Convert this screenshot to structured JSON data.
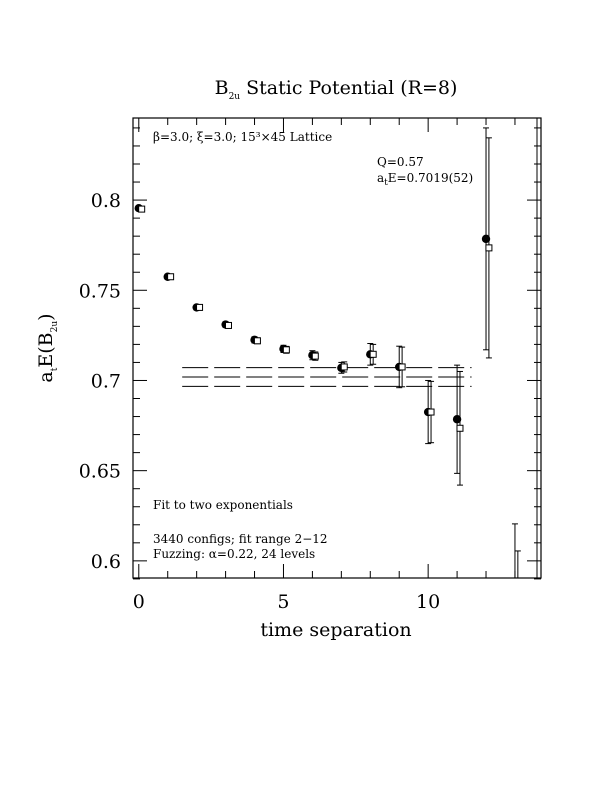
{
  "chart_data": {
    "type": "scatter",
    "title": {
      "text": "B",
      "sub": "2u",
      "rest": " Static Potential (R=8)"
    },
    "xlabel": "time separation",
    "ylabel": {
      "text": "a",
      "sub1": "t",
      "mid": "E(B",
      "sub2": "2u",
      "end": ")"
    },
    "xlim": [
      -0.2,
      13.9
    ],
    "ylim": [
      0.5905,
      0.8455
    ],
    "x_ticks": [
      {
        "v": 0,
        "label": "0"
      },
      {
        "v": 5,
        "label": "5"
      },
      {
        "v": 10,
        "label": "10"
      }
    ],
    "y_ticks": [
      {
        "v": 0.6,
        "label": "0.6"
      },
      {
        "v": 0.65,
        "label": "0.65"
      },
      {
        "v": 0.7,
        "label": "0.7"
      },
      {
        "v": 0.75,
        "label": "0.75"
      },
      {
        "v": 0.8,
        "label": "0.8"
      }
    ],
    "annotations": {
      "lattice": "β=3.0; ξ=3.0; 15³×45 Lattice",
      "q": "Q=0.57",
      "fit_energy": {
        "pre": "a",
        "sub": "t",
        "post": "E=0.7019(52)"
      },
      "fit_type": "Fit to two exponentials",
      "configs": "3440 configs; fit range 2−12",
      "fuzzing": "Fuzzing: α=0.22, 24 levels"
    },
    "fit": {
      "value": 0.7019,
      "error": 0.0052,
      "t_range": [
        1.5,
        11.5
      ]
    },
    "series": [
      {
        "name": "",
        "marker": "filled-circle",
        "points": [
          {
            "x": 0,
            "y": 0.7955,
            "err": 0.001
          },
          {
            "x": 1,
            "y": 0.7575,
            "err": 0.0012
          },
          {
            "x": 2,
            "y": 0.7405,
            "err": 0.0014
          },
          {
            "x": 3,
            "y": 0.731,
            "err": 0.0015
          },
          {
            "x": 4,
            "y": 0.7225,
            "err": 0.0017
          },
          {
            "x": 5,
            "y": 0.7175,
            "err": 0.002
          },
          {
            "x": 6,
            "y": 0.714,
            "err": 0.0025
          },
          {
            "x": 7,
            "y": 0.707,
            "err": 0.003
          },
          {
            "x": 8,
            "y": 0.7145,
            "err": 0.006
          },
          {
            "x": 9,
            "y": 0.7075,
            "err": 0.0115
          },
          {
            "x": 10,
            "y": 0.6825,
            "err": 0.0175
          },
          {
            "x": 11,
            "y": 0.6785,
            "err": 0.03
          },
          {
            "x": 12,
            "y": 0.7785,
            "err": 0.0615
          }
        ]
      },
      {
        "name": "",
        "marker": "open-square",
        "points": [
          {
            "x": 0.1,
            "y": 0.795,
            "err": 0.001
          },
          {
            "x": 1.1,
            "y": 0.7575,
            "err": 0.0011
          },
          {
            "x": 2.1,
            "y": 0.7405,
            "err": 0.0013
          },
          {
            "x": 3.1,
            "y": 0.7305,
            "err": 0.0014
          },
          {
            "x": 4.1,
            "y": 0.722,
            "err": 0.0016
          },
          {
            "x": 5.1,
            "y": 0.717,
            "err": 0.0019
          },
          {
            "x": 6.1,
            "y": 0.7135,
            "err": 0.0023
          },
          {
            "x": 7.1,
            "y": 0.7075,
            "err": 0.0028
          },
          {
            "x": 8.1,
            "y": 0.7145,
            "err": 0.0055
          },
          {
            "x": 9.1,
            "y": 0.7075,
            "err": 0.011
          },
          {
            "x": 10.1,
            "y": 0.6825,
            "err": 0.017
          },
          {
            "x": 11.1,
            "y": 0.6735,
            "err": 0.0315
          },
          {
            "x": 12.1,
            "y": 0.7735,
            "err": 0.061
          },
          {
            "x": 13.0,
            "y": 0.5865,
            "err": 0.034
          },
          {
            "x": 13.1,
            "y": 0.5865,
            "err": 0.019
          }
        ]
      }
    ]
  }
}
